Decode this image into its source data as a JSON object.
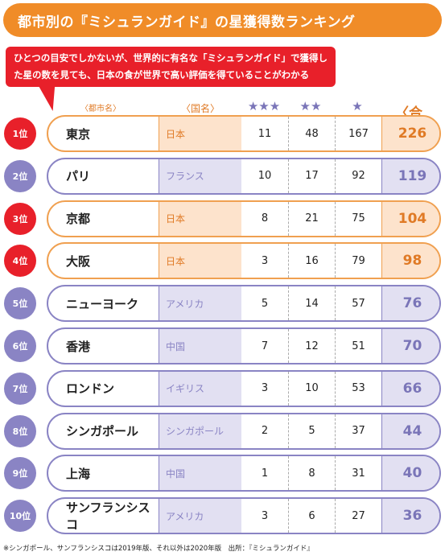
{
  "title": "都市別の『ミシュランガイド』の星獲得数ランキング",
  "callout": {
    "line1": "ひとつの目安でしかないが、世界的に有名な「ミシュランガイド」で獲得し",
    "line2": "た星の数を見ても、日本の食が世界で高い評価を得ていることがわかる"
  },
  "headers": {
    "city": "〈都市名〉",
    "country": "〈国名〉",
    "three_star": "★★★",
    "two_star": "★★",
    "one_star": "★",
    "total": "〈合計〉"
  },
  "colors": {
    "orange": "#f08c28",
    "red": "#e8202a",
    "purple": "#8a84c4",
    "light_orange": "#fde3cc",
    "light_purple": "#e2e0f2"
  },
  "rows": [
    {
      "rank": "1位",
      "city": "東京",
      "country": "日本",
      "three": "11",
      "two": "48",
      "one": "167",
      "total": "226",
      "highlight": true
    },
    {
      "rank": "2位",
      "city": "パリ",
      "country": "フランス",
      "three": "10",
      "two": "17",
      "one": "92",
      "total": "119",
      "highlight": false
    },
    {
      "rank": "3位",
      "city": "京都",
      "country": "日本",
      "three": "8",
      "two": "21",
      "one": "75",
      "total": "104",
      "highlight": true
    },
    {
      "rank": "4位",
      "city": "大阪",
      "country": "日本",
      "three": "3",
      "two": "16",
      "one": "79",
      "total": "98",
      "highlight": true
    },
    {
      "rank": "5位",
      "city": "ニューヨーク",
      "country": "アメリカ",
      "three": "5",
      "two": "14",
      "one": "57",
      "total": "76",
      "highlight": false
    },
    {
      "rank": "6位",
      "city": "香港",
      "country": "中国",
      "three": "7",
      "two": "12",
      "one": "51",
      "total": "70",
      "highlight": false
    },
    {
      "rank": "7位",
      "city": "ロンドン",
      "country": "イギリス",
      "three": "3",
      "two": "10",
      "one": "53",
      "total": "66",
      "highlight": false
    },
    {
      "rank": "8位",
      "city": "シンガポール",
      "country": "シンガポール",
      "three": "2",
      "two": "5",
      "one": "37",
      "total": "44",
      "highlight": false
    },
    {
      "rank": "9位",
      "city": "上海",
      "country": "中国",
      "three": "1",
      "two": "8",
      "one": "31",
      "total": "40",
      "highlight": false
    },
    {
      "rank": "10位",
      "city": "サンフランシスコ",
      "country": "アメリカ",
      "three": "3",
      "two": "6",
      "one": "27",
      "total": "36",
      "highlight": false
    }
  ],
  "footnote": "※シンガポール、サンフランシスコは2019年版、それ以外は2020年版　出所：『ミシュランガイド』"
}
